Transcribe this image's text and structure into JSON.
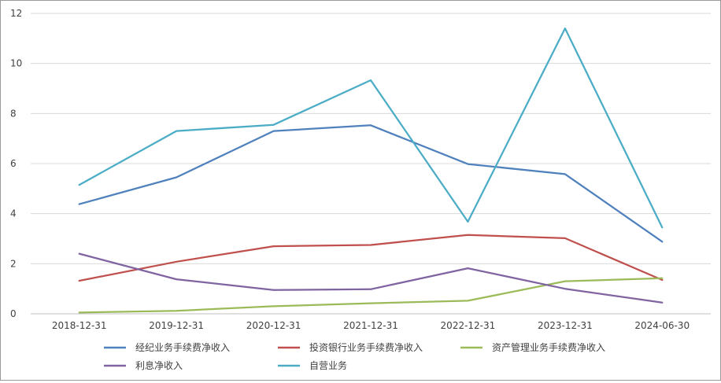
{
  "chart_data": {
    "type": "line",
    "categories": [
      "2018-12-31",
      "2019-12-31",
      "2020-12-31",
      "2021-12-31",
      "2022-12-31",
      "2023-12-31",
      "2024-06-30"
    ],
    "ylim": [
      0,
      12
    ],
    "yticks": [
      0,
      2,
      4,
      6,
      8,
      10,
      12
    ],
    "grid": true,
    "legend_position": "bottom",
    "series": [
      {
        "name": "经纪业务手续费净收入",
        "color": "#4f81bd",
        "values": [
          4.38,
          5.45,
          7.3,
          7.53,
          5.98,
          5.58,
          2.88
        ]
      },
      {
        "name": "投资银行业务手续费净收入",
        "color": "#c0504d",
        "values": [
          1.32,
          2.08,
          2.7,
          2.75,
          3.15,
          3.02,
          1.35
        ]
      },
      {
        "name": "资产管理业务手续费净收入",
        "color": "#9bbb59",
        "values": [
          0.05,
          0.12,
          0.3,
          0.42,
          0.52,
          1.3,
          1.42
        ]
      },
      {
        "name": "利息净收入",
        "color": "#8064a2",
        "values": [
          2.4,
          1.38,
          0.95,
          0.98,
          1.82,
          1.0,
          0.45
        ]
      },
      {
        "name": "自营业务",
        "color": "#4bacc6",
        "values": [
          5.15,
          7.3,
          7.55,
          9.33,
          3.68,
          11.4,
          3.45
        ]
      }
    ]
  }
}
